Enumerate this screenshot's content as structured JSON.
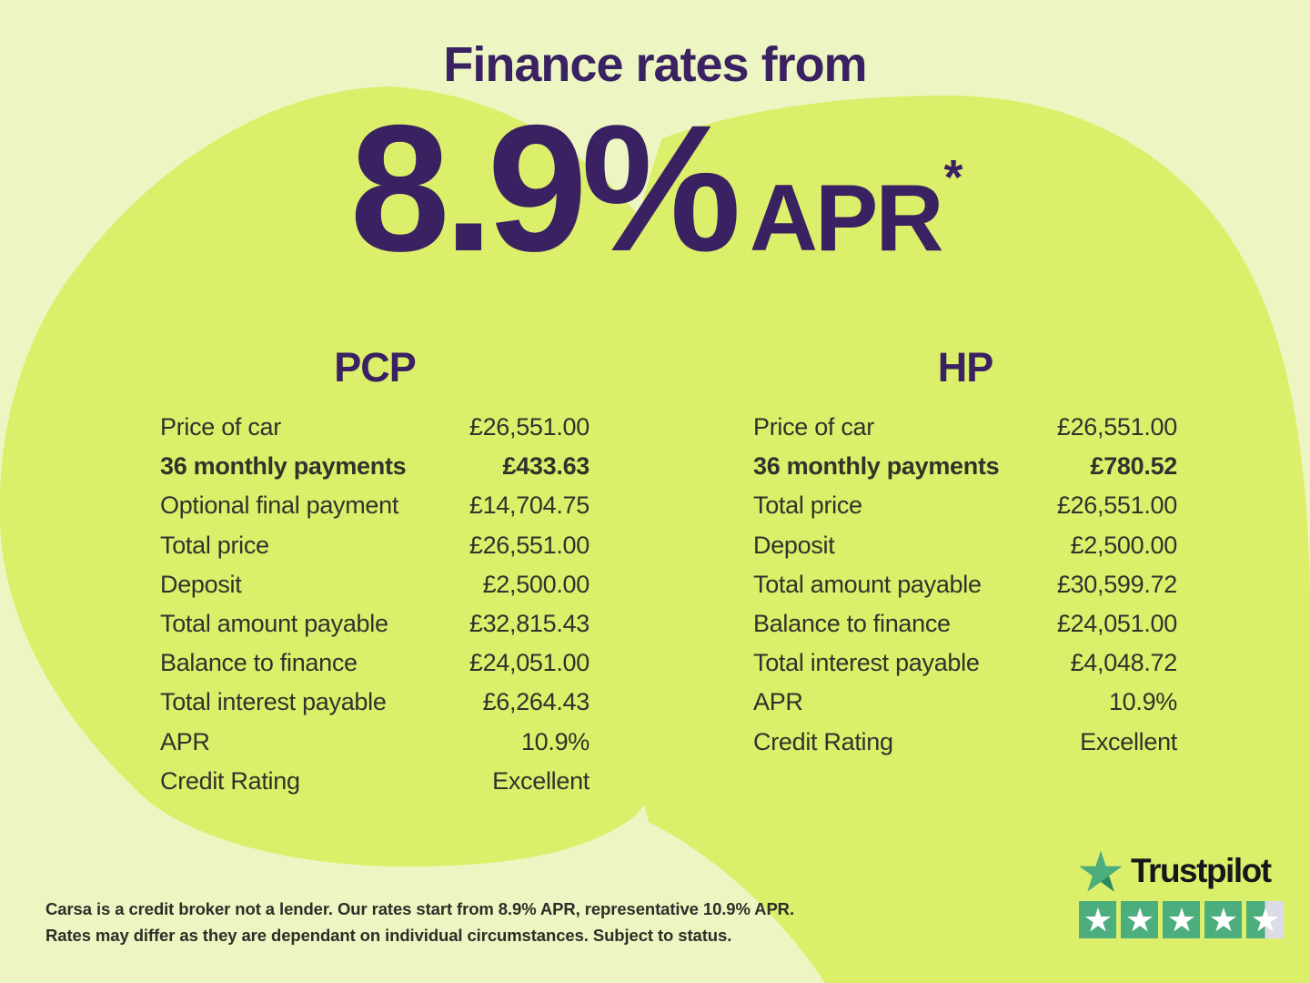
{
  "header": {
    "kicker": "Finance rates from",
    "rate": "8.9%",
    "rate_unit": "APR",
    "rate_note_symbol": "*"
  },
  "finance_tables": [
    {
      "heading": "PCP",
      "rows": [
        {
          "label": "Price of car",
          "value": "£26,551.00",
          "bold": false
        },
        {
          "label": "36 monthly payments",
          "value": "£433.63",
          "bold": true
        },
        {
          "label": "Optional final payment",
          "value": "£14,704.75",
          "bold": false
        },
        {
          "label": "Total price",
          "value": "£26,551.00",
          "bold": false
        },
        {
          "label": "Deposit",
          "value": "£2,500.00",
          "bold": false
        },
        {
          "label": "Total amount payable",
          "value": "£32,815.43",
          "bold": false
        },
        {
          "label": "Balance to finance",
          "value": "£24,051.00",
          "bold": false
        },
        {
          "label": "Total interest payable",
          "value": "£6,264.43",
          "bold": false
        },
        {
          "label": "APR",
          "value": "10.9%",
          "bold": false
        },
        {
          "label": "Credit Rating",
          "value": "Excellent",
          "bold": false
        }
      ]
    },
    {
      "heading": "HP",
      "rows": [
        {
          "label": "Price of car",
          "value": "£26,551.00",
          "bold": false
        },
        {
          "label": "36 monthly payments",
          "value": "£780.52",
          "bold": true
        },
        {
          "label": "Total price",
          "value": "£26,551.00",
          "bold": false
        },
        {
          "label": "Deposit",
          "value": "£2,500.00",
          "bold": false
        },
        {
          "label": "Total amount payable",
          "value": "£30,599.72",
          "bold": false
        },
        {
          "label": "Balance to finance",
          "value": "£24,051.00",
          "bold": false
        },
        {
          "label": "Total interest payable",
          "value": "£4,048.72",
          "bold": false
        },
        {
          "label": "APR",
          "value": "10.9%",
          "bold": false
        },
        {
          "label": "Credit Rating",
          "value": "Excellent",
          "bold": false
        }
      ]
    }
  ],
  "trustpilot": {
    "brand": "Trustpilot",
    "rating": 4.5,
    "max_stars": 5
  },
  "disclaimer": {
    "line1": "Carsa is a credit broker not a lender. Our rates start from 8.9% APR, representative 10.9% APR.",
    "line2": "Rates may differ as they are dependant on individual circumstances. Subject to status."
  },
  "colors": {
    "background": "#EDF6C2",
    "blob": "#DCEF6B",
    "accent_purple": "#3A2161",
    "text_dark": "#32312B",
    "trustpilot_green": "#4DAE7D",
    "trustpilot_green_dark": "#2B8A60",
    "trustpilot_star_empty": "#DCDCE6",
    "trustpilot_text": "#17171B"
  }
}
